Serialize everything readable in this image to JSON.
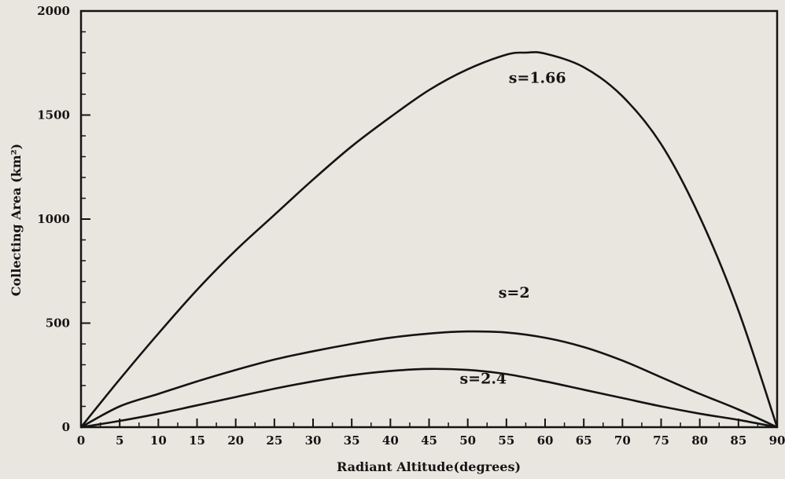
{
  "chart_data": {
    "type": "line",
    "title": "",
    "xlabel": "Radiant Altitude(degrees)",
    "ylabel": "Collecting Area (km²)",
    "xlim": [
      0,
      90
    ],
    "ylim": [
      0,
      2000
    ],
    "x_ticks": [
      0,
      5,
      10,
      15,
      20,
      25,
      30,
      35,
      40,
      45,
      50,
      55,
      60,
      65,
      70,
      75,
      80,
      85,
      90
    ],
    "y_ticks": [
      0,
      500,
      1000,
      1500,
      2000
    ],
    "grid": false,
    "legend": "none",
    "line_color": "#141414",
    "background_color": "#e9e6df",
    "series": [
      {
        "name": "s=1.66",
        "x": [
          0,
          5,
          10,
          15,
          20,
          25,
          30,
          35,
          40,
          45,
          50,
          55,
          57.5,
          60,
          65,
          70,
          75,
          80,
          85,
          90
        ],
        "y": [
          0,
          230,
          450,
          660,
          850,
          1020,
          1190,
          1350,
          1490,
          1620,
          1720,
          1790,
          1800,
          1795,
          1730,
          1590,
          1360,
          1010,
          560,
          0
        ]
      },
      {
        "name": "s=2",
        "x": [
          0,
          5,
          10,
          15,
          20,
          25,
          30,
          35,
          40,
          45,
          50,
          55,
          60,
          65,
          70,
          75,
          80,
          85,
          90
        ],
        "y": [
          0,
          100,
          160,
          220,
          275,
          325,
          365,
          400,
          430,
          450,
          460,
          455,
          430,
          385,
          320,
          240,
          160,
          85,
          0
        ]
      },
      {
        "name": "s=2.4",
        "x": [
          0,
          5,
          10,
          15,
          20,
          25,
          30,
          35,
          40,
          45,
          50,
          55,
          60,
          65,
          70,
          75,
          80,
          85,
          90
        ],
        "y": [
          0,
          30,
          65,
          105,
          145,
          185,
          220,
          250,
          270,
          280,
          275,
          255,
          220,
          180,
          140,
          100,
          65,
          35,
          0
        ]
      }
    ],
    "annotations": [
      {
        "text": "s=1.66",
        "x": 59,
        "y": 1655
      },
      {
        "text": "s=2",
        "x": 56,
        "y": 622
      },
      {
        "text": "s=2.4",
        "x": 52,
        "y": 210
      }
    ]
  }
}
